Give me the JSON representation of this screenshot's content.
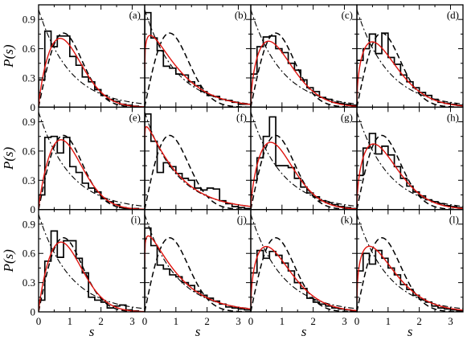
{
  "chart_data": {
    "type": "histogram-grid",
    "rows": 3,
    "cols": 4,
    "xlabel": "s",
    "ylabel": "P(s)",
    "xlim": [
      0,
      3.4
    ],
    "ylim": [
      0,
      1.05
    ],
    "x_ticks": [
      0,
      1,
      2,
      3
    ],
    "y_ticks": [
      0,
      0.3,
      0.6,
      0.9
    ],
    "reference_curves": [
      {
        "id": "dashed",
        "style": "dashed",
        "color": "#000000",
        "description": "GOE Wigner surmise"
      },
      {
        "id": "dashdot",
        "style": "dash-dot",
        "color": "#000000",
        "description": "Poisson"
      },
      {
        "id": "fit",
        "style": "solid",
        "color": "#e0140f",
        "description": "Brody fit"
      }
    ],
    "bin_width": 0.2,
    "panels": [
      {
        "label": "(a)",
        "brody_q": 0.75,
        "hist": [
          0.28,
          0.78,
          0.62,
          0.73,
          0.73,
          0.52,
          0.43,
          0.31,
          0.26,
          0.18,
          0.12,
          0.08,
          0.06,
          0.03,
          0.02,
          0.01,
          0.0
        ]
      },
      {
        "label": "(b)",
        "brody_q": 0.15,
        "hist": [
          0.97,
          0.71,
          0.58,
          0.42,
          0.4,
          0.34,
          0.33,
          0.26,
          0.22,
          0.16,
          0.12,
          0.11,
          0.08,
          0.07,
          0.05,
          0.03,
          0.03
        ]
      },
      {
        "label": "(c)",
        "brody_q": 0.55,
        "hist": [
          0.34,
          0.62,
          0.72,
          0.73,
          0.6,
          0.56,
          0.45,
          0.38,
          0.28,
          0.2,
          0.16,
          0.1,
          0.08,
          0.05,
          0.04,
          0.03,
          0.02
        ]
      },
      {
        "label": "(d)",
        "brody_q": 0.45,
        "hist": [
          0.48,
          0.6,
          0.75,
          0.55,
          0.76,
          0.51,
          0.44,
          0.33,
          0.26,
          0.2,
          0.15,
          0.12,
          0.08,
          0.05,
          0.04,
          0.03,
          0.02
        ]
      },
      {
        "label": "(e)",
        "brody_q": 0.8,
        "hist": [
          0.15,
          0.74,
          0.75,
          0.58,
          0.74,
          0.44,
          0.38,
          0.27,
          0.22,
          0.18,
          0.11,
          0.08,
          0.05,
          0.02,
          0.01,
          0.01,
          0.0
        ]
      },
      {
        "label": "(f)",
        "brody_q": 0.05,
        "hist": [
          0.98,
          0.7,
          0.38,
          0.48,
          0.44,
          0.37,
          0.32,
          0.3,
          0.22,
          0.2,
          0.22,
          0.21,
          0.09,
          0.06,
          0.03,
          0.02,
          0.01
        ]
      },
      {
        "label": "(g)",
        "brody_q": 0.65,
        "hist": [
          0.3,
          0.53,
          0.75,
          0.95,
          0.45,
          0.45,
          0.43,
          0.32,
          0.23,
          0.17,
          0.13,
          0.09,
          0.07,
          0.05,
          0.03,
          0.02,
          0.01
        ]
      },
      {
        "label": "(h)",
        "brody_q": 0.5,
        "hist": [
          0.35,
          0.63,
          0.78,
          0.57,
          0.65,
          0.56,
          0.44,
          0.32,
          0.24,
          0.18,
          0.14,
          0.1,
          0.08,
          0.06,
          0.04,
          0.03,
          0.02
        ]
      },
      {
        "label": "(i)",
        "brody_q": 0.8,
        "hist": [
          0.12,
          0.52,
          0.83,
          0.56,
          0.73,
          0.73,
          0.55,
          0.4,
          0.15,
          0.12,
          0.1,
          0.04,
          0.06,
          0.07,
          0.02,
          0.01,
          0.0
        ]
      },
      {
        "label": "(j)",
        "brody_q": 0.1,
        "hist": [
          0.86,
          0.68,
          0.48,
          0.44,
          0.38,
          0.36,
          0.3,
          0.27,
          0.21,
          0.17,
          0.14,
          0.11,
          0.08,
          0.05,
          0.04,
          0.03,
          0.02
        ]
      },
      {
        "label": "(k)",
        "brody_q": 0.45,
        "hist": [
          0.4,
          0.63,
          0.55,
          0.62,
          0.58,
          0.5,
          0.42,
          0.3,
          0.24,
          0.14,
          0.1,
          0.08,
          0.06,
          0.04,
          0.03,
          0.02,
          0.01
        ]
      },
      {
        "label": "(l)",
        "brody_q": 0.35,
        "hist": [
          0.42,
          0.6,
          0.49,
          0.63,
          0.55,
          0.45,
          0.38,
          0.28,
          0.23,
          0.17,
          0.13,
          0.1,
          0.06,
          0.04,
          0.03,
          0.02,
          0.01
        ]
      }
    ]
  }
}
